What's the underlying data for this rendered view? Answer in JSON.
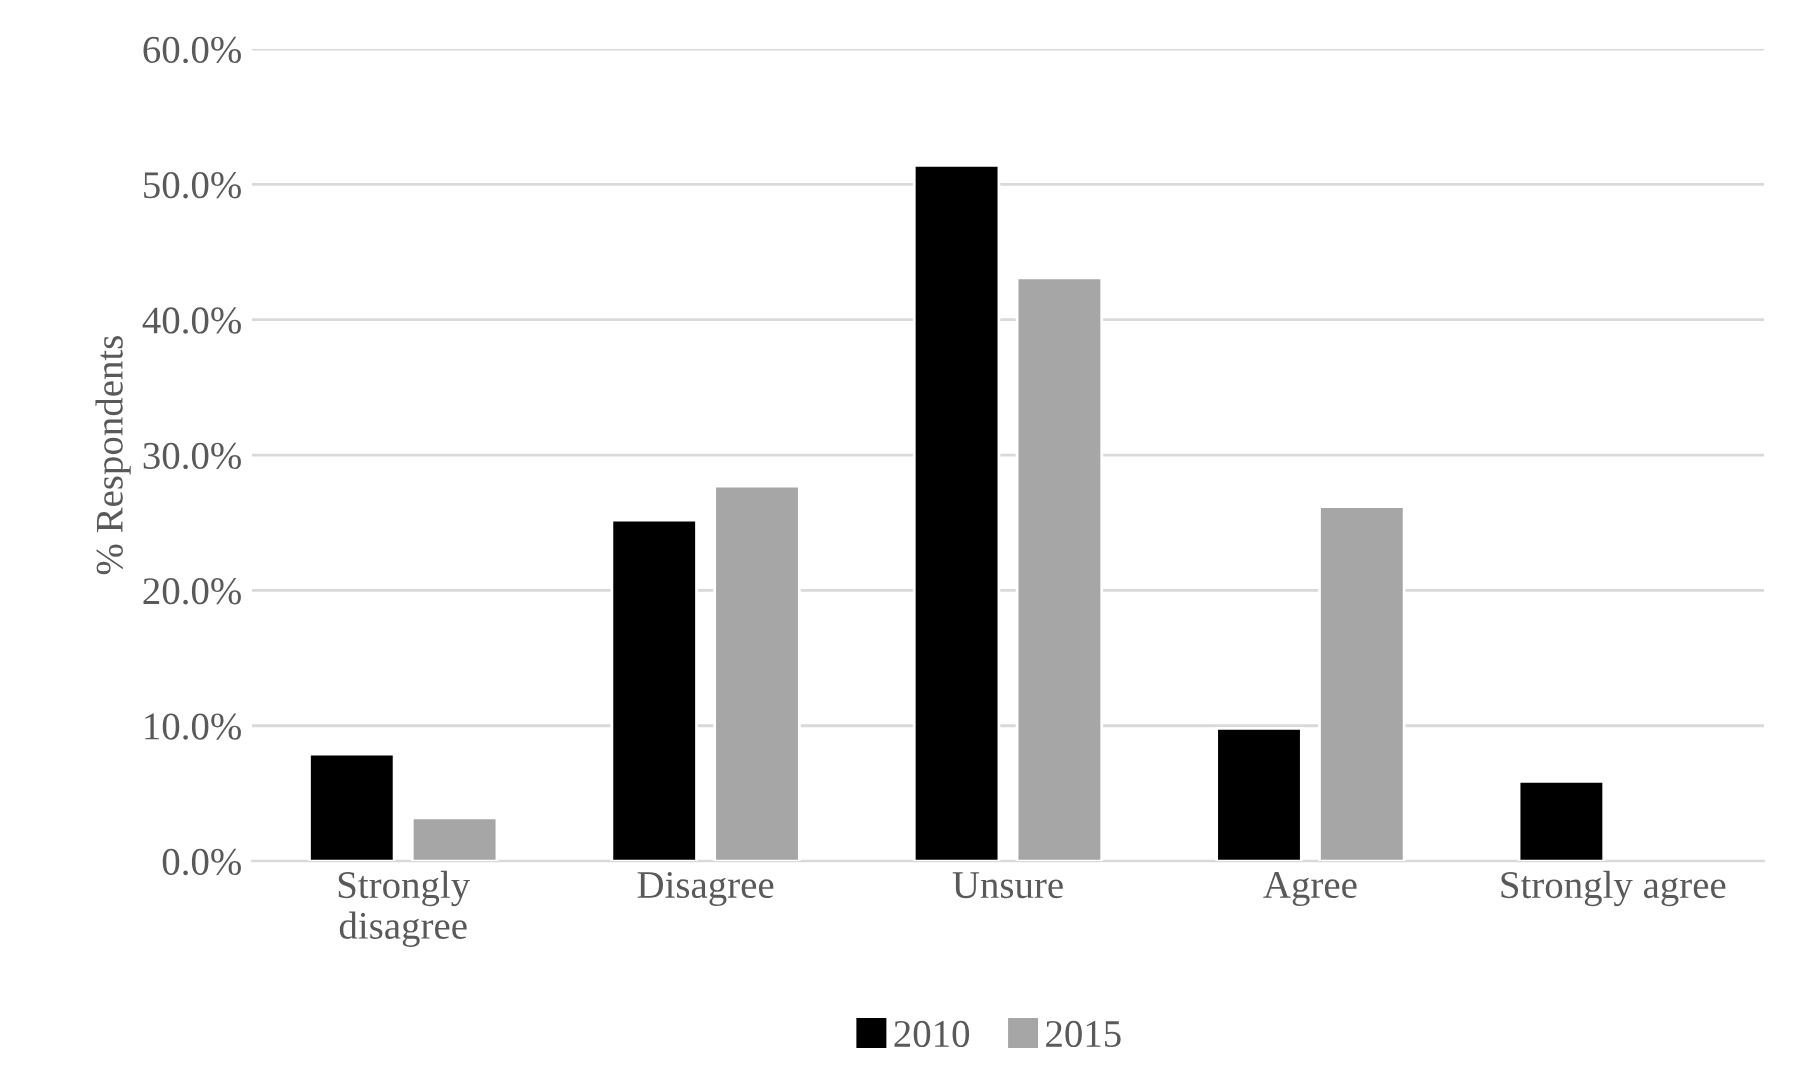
{
  "chart_data": {
    "type": "bar",
    "ylabel": "% Respondents",
    "categories": [
      "Strongly\ndisagree",
      "Disagree",
      "Unsure",
      "Agree",
      "Strongly agree"
    ],
    "series": [
      {
        "name": "2010",
        "color": "#000000",
        "values": [
          7.9,
          25.2,
          51.4,
          9.8,
          5.9
        ]
      },
      {
        "name": "2015",
        "color": "#a6a6a6",
        "values": [
          3.2,
          27.7,
          43.1,
          26.2,
          null
        ]
      }
    ],
    "ylim": [
      0,
      60
    ],
    "yticks": [
      {
        "value": 0,
        "label": "0.0%"
      },
      {
        "value": 10,
        "label": "10.0%"
      },
      {
        "value": 20,
        "label": "20.0%"
      },
      {
        "value": 30,
        "label": "30.0%"
      },
      {
        "value": 40,
        "label": "40.0%"
      },
      {
        "value": 50,
        "label": "50.0%"
      },
      {
        "value": 60,
        "label": "60.0%"
      }
    ],
    "grid": "y",
    "legend": "bottom"
  }
}
